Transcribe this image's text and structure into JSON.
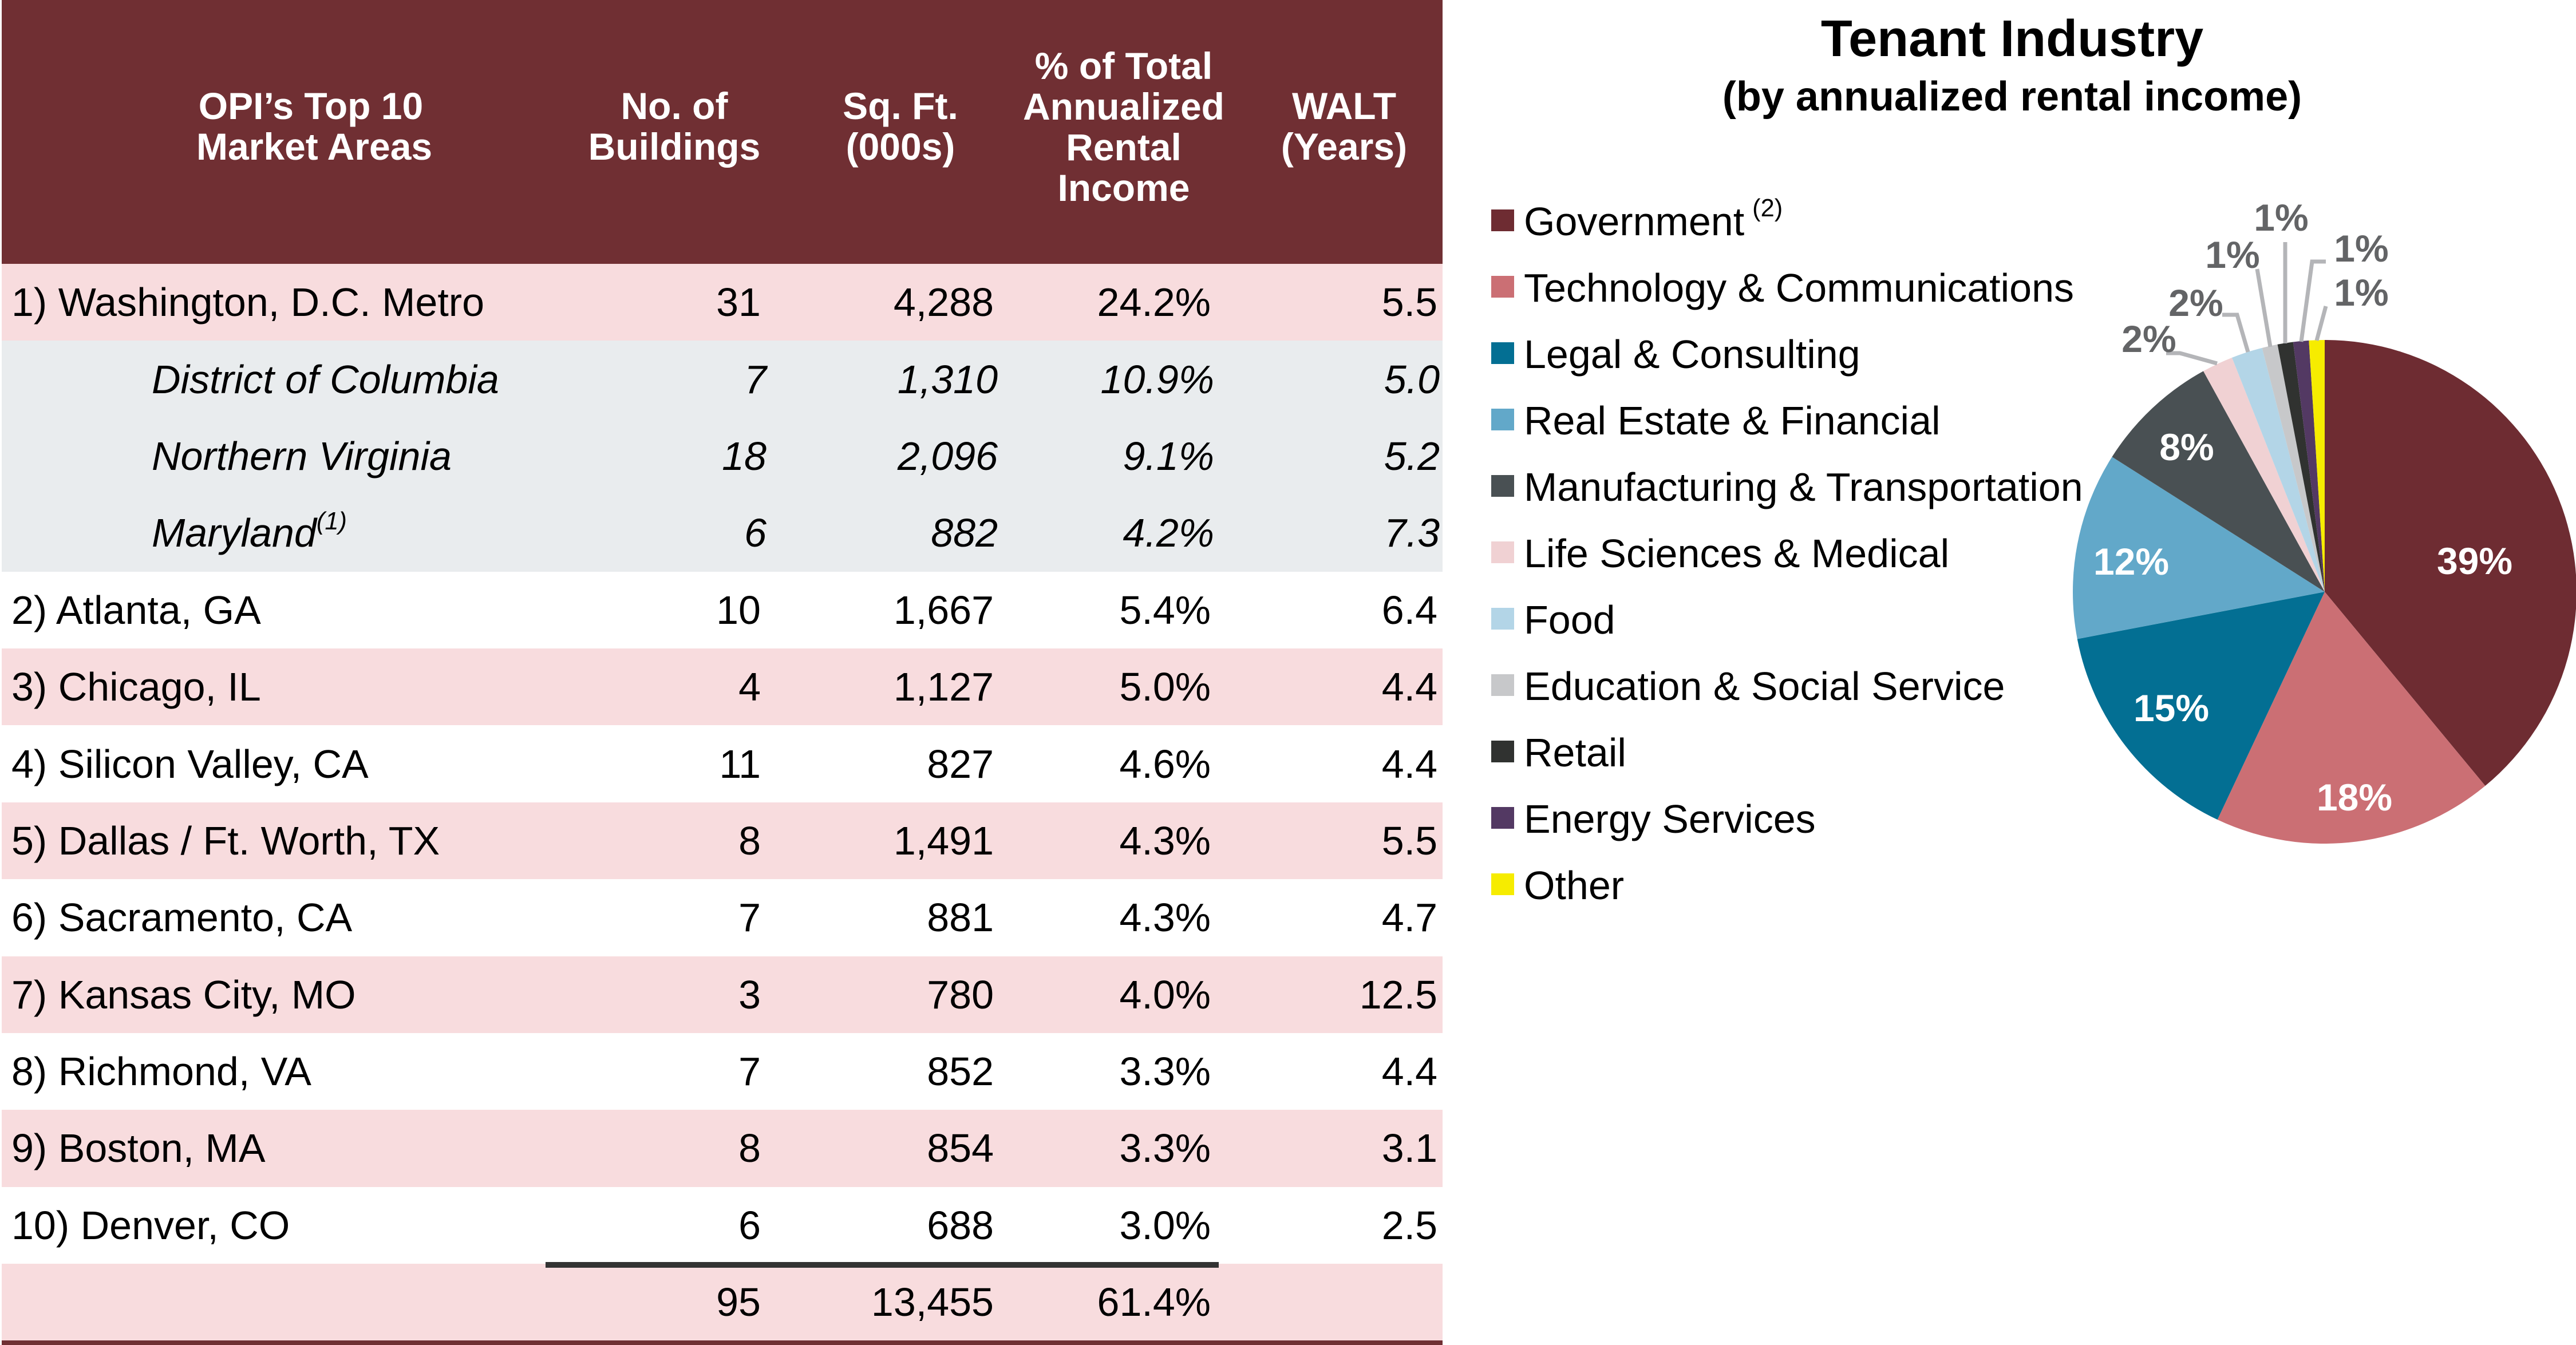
{
  "table": {
    "headers": {
      "market": [
        "OPI’s Top 10",
        "Market Areas"
      ],
      "buildings": [
        "No. of",
        "Buildings"
      ],
      "sqft": [
        "Sq. Ft.",
        "(000s)"
      ],
      "pct": [
        "% of Total",
        "Annualized",
        "Rental",
        "Income"
      ],
      "walt": [
        "WALT",
        "(Years)"
      ]
    },
    "rows": [
      {
        "name": "1) Washington, D.C. Metro",
        "buildings": "31",
        "sqft": "4,288",
        "pct": "24.2%",
        "walt": "5.5",
        "style": "pink"
      },
      {
        "name": "District of Columbia",
        "buildings": "7",
        "sqft": "1,310",
        "pct": "10.9%",
        "walt": "5.0",
        "style": "gray",
        "sub": true
      },
      {
        "name": "Northern Virginia",
        "buildings": "18",
        "sqft": "2,096",
        "pct": "9.1%",
        "walt": "5.2",
        "style": "gray",
        "sub": true
      },
      {
        "name": "Maryland",
        "footnote": "(1)",
        "buildings": "6",
        "sqft": "882",
        "pct": "4.2%",
        "walt": "7.3",
        "style": "gray",
        "sub": true
      },
      {
        "name": "2) Atlanta, GA",
        "buildings": "10",
        "sqft": "1,667",
        "pct": "5.4%",
        "walt": "6.4",
        "style": "white"
      },
      {
        "name": "3) Chicago, IL",
        "buildings": "4",
        "sqft": "1,127",
        "pct": "5.0%",
        "walt": "4.4",
        "style": "pink"
      },
      {
        "name": "4) Silicon Valley, CA",
        "buildings": "11",
        "sqft": "827",
        "pct": "4.6%",
        "walt": "4.4",
        "style": "white"
      },
      {
        "name": "5) Dallas / Ft. Worth, TX",
        "buildings": "8",
        "sqft": "1,491",
        "pct": "4.3%",
        "walt": "5.5",
        "style": "pink"
      },
      {
        "name": "6) Sacramento, CA",
        "buildings": "7",
        "sqft": "881",
        "pct": "4.3%",
        "walt": "4.7",
        "style": "white"
      },
      {
        "name": "7) Kansas City, MO",
        "buildings": "3",
        "sqft": "780",
        "pct": "4.0%",
        "walt": "12.5",
        "style": "pink"
      },
      {
        "name": "8) Richmond, VA",
        "buildings": "7",
        "sqft": "852",
        "pct": "3.3%",
        "walt": "4.4",
        "style": "white"
      },
      {
        "name": "9) Boston, MA",
        "buildings": "8",
        "sqft": "854",
        "pct": "3.3%",
        "walt": "3.1",
        "style": "pink"
      },
      {
        "name": "10) Denver, CO",
        "buildings": "6",
        "sqft": "688",
        "pct": "3.0%",
        "walt": "2.5",
        "style": "white"
      }
    ],
    "total": {
      "name": "",
      "buildings": "95",
      "sqft": "13,455",
      "pct": "61.4%",
      "walt": ""
    }
  },
  "colors": {
    "header_bg": "#702F33",
    "row_pink": "#F8DCDE",
    "row_gray": "#E9ECEE",
    "label_outside": "#636466",
    "leader_line": "#B4B5B8"
  },
  "chart_data": {
    "type": "pie",
    "title": "Tenant Industry",
    "subtitle": "(by annualized rental income)",
    "legend_position": "left",
    "start_angle": "12 o'clock, clockwise",
    "slices": [
      {
        "name": "Government",
        "footnote": "(2)",
        "value": 39,
        "label": "39%",
        "color": "#6E2C32",
        "label_placement": "inside"
      },
      {
        "name": "Technology & Communications",
        "value": 18,
        "label": "18%",
        "color": "#CB6F74",
        "label_placement": "inside"
      },
      {
        "name": "Legal & Consulting",
        "value": 15,
        "label": "15%",
        "color": "#036F93",
        "label_placement": "inside"
      },
      {
        "name": "Real Estate & Financial",
        "value": 12,
        "label": "12%",
        "color": "#62A8C9",
        "label_placement": "inside"
      },
      {
        "name": "Manufacturing & Transportation",
        "value": 8,
        "label": "8%",
        "color": "#495053",
        "label_placement": "inside"
      },
      {
        "name": "Life Sciences & Medical",
        "value": 2,
        "label": "2%",
        "color": "#F0D1D3",
        "label_placement": "outside"
      },
      {
        "name": "Food",
        "value": 2,
        "label": "2%",
        "color": "#B3D5E7",
        "label_placement": "outside"
      },
      {
        "name": "Education & Social Service",
        "value": 1,
        "label": "1%",
        "color": "#C7C8CA",
        "label_placement": "outside"
      },
      {
        "name": "Retail",
        "value": 1,
        "label": "1%",
        "color": "#303230",
        "label_placement": "outside"
      },
      {
        "name": "Energy Services",
        "value": 1,
        "label": "1%",
        "color": "#533963",
        "label_placement": "outside"
      },
      {
        "name": "Other",
        "value": 1,
        "label": "1%",
        "color": "#F6EC00",
        "label_placement": "outside"
      }
    ]
  }
}
